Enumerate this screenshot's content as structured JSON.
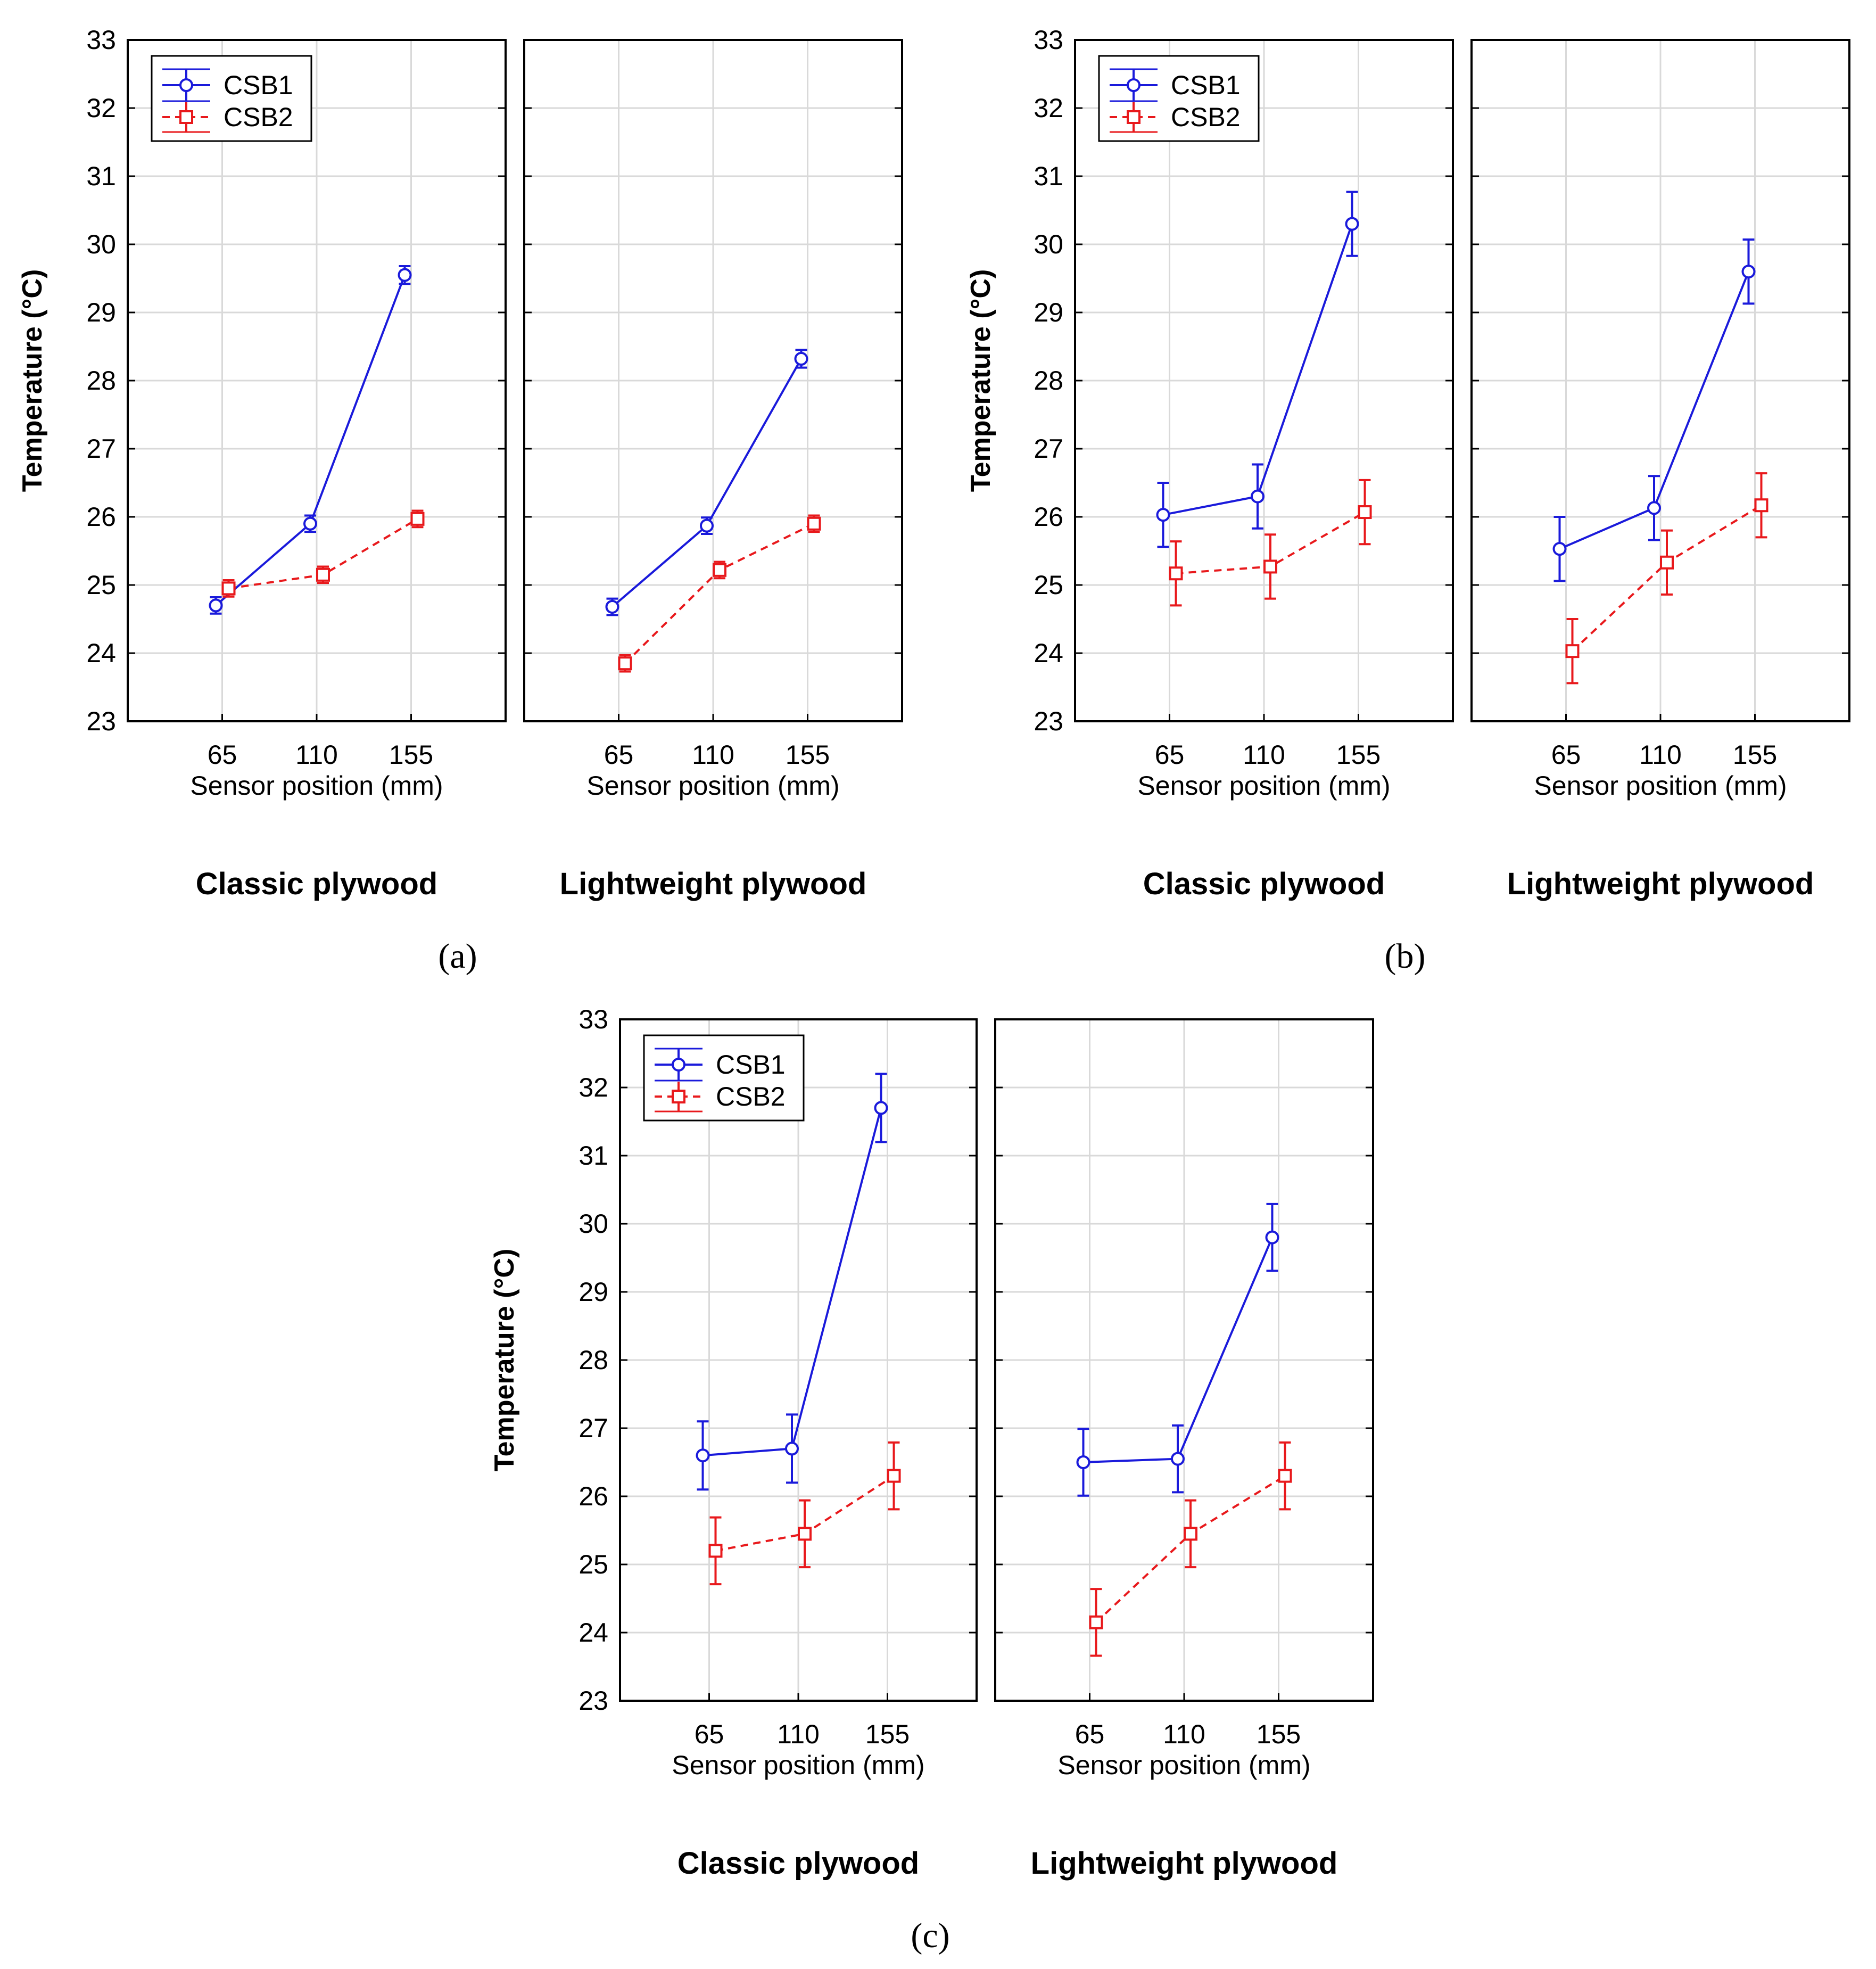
{
  "colors": {
    "csb1": "#1a1adb",
    "csb2": "#e8191c",
    "grid": "#d9d9d9",
    "frame": "#000000"
  },
  "legend": {
    "series1": "CSB1",
    "series2": "CSB2"
  },
  "chart_data": [
    {
      "type": "line",
      "subfigure": "a",
      "y_ticks": [
        "23",
        "24",
        "25",
        "26",
        "27",
        "28",
        "29",
        "30",
        "31",
        "32",
        "33"
      ],
      "ylim": [
        23,
        33
      ],
      "ylabel": "Temperature (°C)",
      "panels": [
        {
          "title": "Classic plywood",
          "xlabel": "Sensor position (mm)",
          "categories": [
            "65",
            "110",
            "155"
          ],
          "series": [
            {
              "name": "CSB1",
              "values": [
                24.7,
                25.9,
                29.55
              ],
              "err": [
                0.12,
                0.12,
                0.13
              ]
            },
            {
              "name": "CSB2",
              "values": [
                24.95,
                25.15,
                25.97
              ],
              "err": [
                0.12,
                0.12,
                0.12
              ]
            }
          ]
        },
        {
          "title": "Lightweight plywood",
          "xlabel": "Sensor position (mm)",
          "categories": [
            "65",
            "110",
            "155"
          ],
          "series": [
            {
              "name": "CSB1",
              "values": [
                24.68,
                25.87,
                28.32
              ],
              "err": [
                0.12,
                0.12,
                0.13
              ]
            },
            {
              "name": "CSB2",
              "values": [
                23.85,
                25.22,
                25.9
              ],
              "err": [
                0.12,
                0.12,
                0.12
              ]
            }
          ]
        }
      ]
    },
    {
      "type": "line",
      "subfigure": "b",
      "y_ticks": [
        "23",
        "24",
        "25",
        "26",
        "27",
        "28",
        "29",
        "30",
        "31",
        "32",
        "33"
      ],
      "ylim": [
        23,
        33
      ],
      "ylabel": "Temperature (°C)",
      "panels": [
        {
          "title": "Classic plywood",
          "xlabel": "Sensor position (mm)",
          "categories": [
            "65",
            "110",
            "155"
          ],
          "series": [
            {
              "name": "CSB1",
              "values": [
                26.03,
                26.3,
                30.3
              ],
              "err": [
                0.47,
                0.47,
                0.47
              ]
            },
            {
              "name": "CSB2",
              "values": [
                25.17,
                25.27,
                26.07
              ],
              "err": [
                0.47,
                0.47,
                0.47
              ]
            }
          ]
        },
        {
          "title": "Lightweight plywood",
          "xlabel": "Sensor position (mm)",
          "categories": [
            "65",
            "110",
            "155"
          ],
          "series": [
            {
              "name": "CSB1",
              "values": [
                25.53,
                26.13,
                29.6
              ],
              "err": [
                0.47,
                0.47,
                0.47
              ]
            },
            {
              "name": "CSB2",
              "values": [
                24.03,
                25.33,
                26.17
              ],
              "err": [
                0.47,
                0.47,
                0.47
              ]
            }
          ]
        }
      ]
    },
    {
      "type": "line",
      "subfigure": "c",
      "y_ticks": [
        "23",
        "24",
        "25",
        "26",
        "27",
        "28",
        "29",
        "30",
        "31",
        "32",
        "33"
      ],
      "ylim": [
        23,
        33
      ],
      "ylabel": "Temperature (°C)",
      "panels": [
        {
          "title": "Classic plywood",
          "xlabel": "Sensor position (mm)",
          "categories": [
            "65",
            "110",
            "155"
          ],
          "series": [
            {
              "name": "CSB1",
              "values": [
                26.6,
                26.7,
                31.7
              ],
              "err": [
                0.5,
                0.5,
                0.5
              ]
            },
            {
              "name": "CSB2",
              "values": [
                25.2,
                25.45,
                26.3
              ],
              "err": [
                0.49,
                0.49,
                0.49
              ]
            }
          ]
        },
        {
          "title": "Lightweight plywood",
          "xlabel": "Sensor position (mm)",
          "categories": [
            "65",
            "110",
            "155"
          ],
          "series": [
            {
              "name": "CSB1",
              "values": [
                26.5,
                26.55,
                29.8
              ],
              "err": [
                0.49,
                0.49,
                0.49
              ]
            },
            {
              "name": "CSB2",
              "values": [
                24.15,
                25.45,
                26.3
              ],
              "err": [
                0.49,
                0.49,
                0.49
              ]
            }
          ]
        }
      ]
    }
  ],
  "labels": {
    "a": "(a)",
    "b": "(b)",
    "c": "(c)"
  }
}
